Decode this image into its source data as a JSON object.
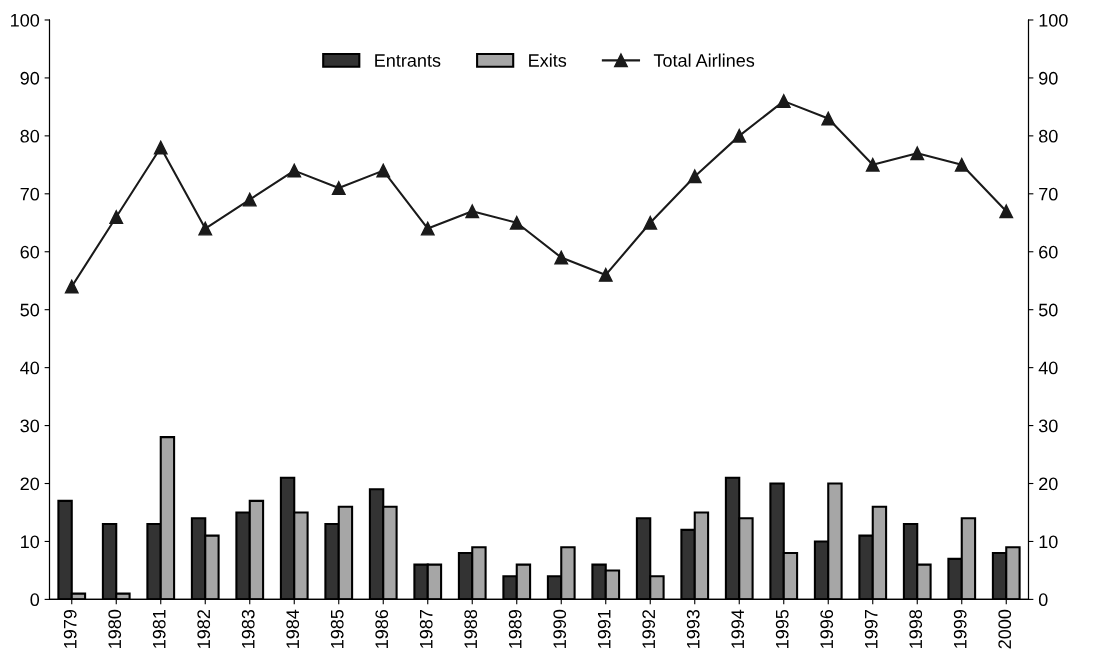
{
  "chart_data": {
    "type": "bar",
    "categories": [
      "1979",
      "1980",
      "1981",
      "1982",
      "1983",
      "1984",
      "1985",
      "1986",
      "1987",
      "1988",
      "1989",
      "1990",
      "1991",
      "1992",
      "1993",
      "1994",
      "1995",
      "1996",
      "1997",
      "1998",
      "1999",
      "2000"
    ],
    "series": [
      {
        "name": "Entrants",
        "color": "#333333",
        "values": [
          17,
          13,
          13,
          14,
          15,
          21,
          13,
          19,
          6,
          8,
          4,
          4,
          6,
          14,
          12,
          21,
          20,
          10,
          11,
          13,
          7,
          8
        ]
      },
      {
        "name": "Exits",
        "color": "#a6a6a6",
        "values": [
          1,
          1,
          28,
          11,
          17,
          15,
          16,
          16,
          6,
          9,
          6,
          9,
          5,
          4,
          15,
          14,
          8,
          20,
          16,
          6,
          14,
          9
        ]
      },
      {
        "name": "Total Airlines",
        "type": "line",
        "color": "#1a1a1a",
        "marker": "triangle",
        "values": [
          54,
          66,
          78,
          64,
          69,
          74,
          71,
          74,
          64,
          67,
          65,
          59,
          56,
          65,
          73,
          80,
          86,
          83,
          75,
          77,
          75,
          67
        ]
      }
    ],
    "ylim": [
      0,
      100
    ],
    "yticks": [
      0,
      10,
      20,
      30,
      40,
      50,
      60,
      70,
      80,
      90,
      100
    ],
    "y2lim": [
      0,
      100
    ],
    "y2ticks": [
      0,
      10,
      20,
      30,
      40,
      50,
      60,
      70,
      80,
      90,
      100
    ],
    "grid": false,
    "legend": "top"
  }
}
